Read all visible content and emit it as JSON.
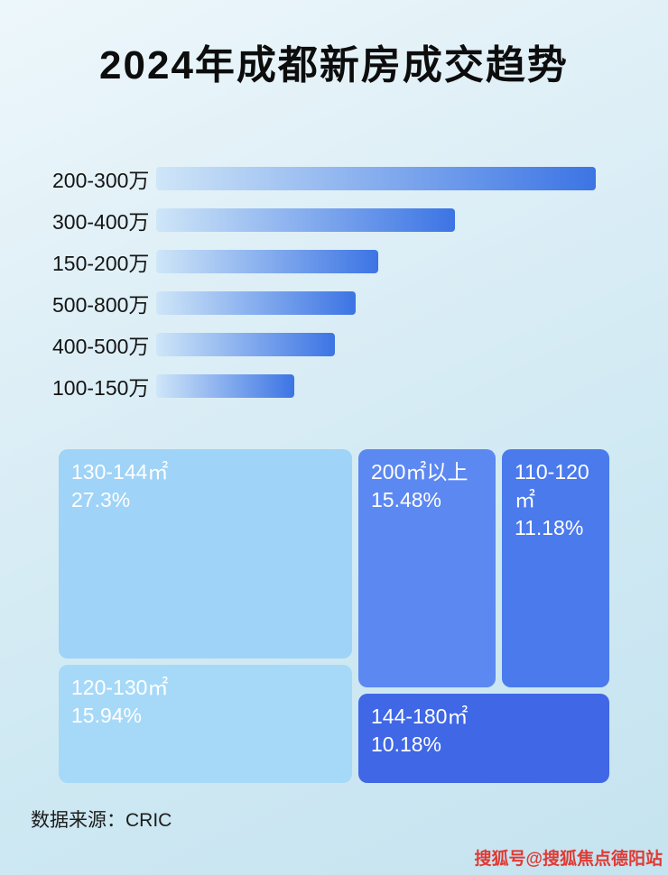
{
  "title": "2024年成都新房成交趋势",
  "chart_data": [
    {
      "type": "bar",
      "orientation": "horizontal",
      "title": "2024年成都新房成交趋势",
      "xlabel": "",
      "ylabel": "",
      "categories": [
        "200-300万",
        "300-400万",
        "150-200万",
        "500-800万",
        "400-500万",
        "100-150万"
      ],
      "values": [
        100,
        68,
        50.5,
        45.4,
        40.6,
        31.5
      ],
      "value_unit": "relative-bar-length-percent-estimated",
      "bar_gradient": [
        "#cfe6f8",
        "#3c74e4"
      ],
      "grid": false,
      "legend": false
    },
    {
      "type": "treemap",
      "items": [
        {
          "label": "130-144㎡",
          "value": 27.3,
          "display": "27.3%",
          "color": "#9fd3f7"
        },
        {
          "label": "200㎡以上",
          "value": 15.48,
          "display": "15.48%",
          "color": "#5c88f1"
        },
        {
          "label": "110-120㎡",
          "value": 11.18,
          "display": "11.18%",
          "color": "#4a7aec"
        },
        {
          "label": "120-130㎡",
          "value": 15.94,
          "display": "15.94%",
          "color": "#a6d9f8"
        },
        {
          "label": "144-180㎡",
          "value": 10.18,
          "display": "10.18%",
          "color": "#3f67e6"
        }
      ]
    }
  ],
  "footer": {
    "source": "数据来源：CRIC",
    "watermark": "搜狐号@搜狐焦点德阳站"
  }
}
